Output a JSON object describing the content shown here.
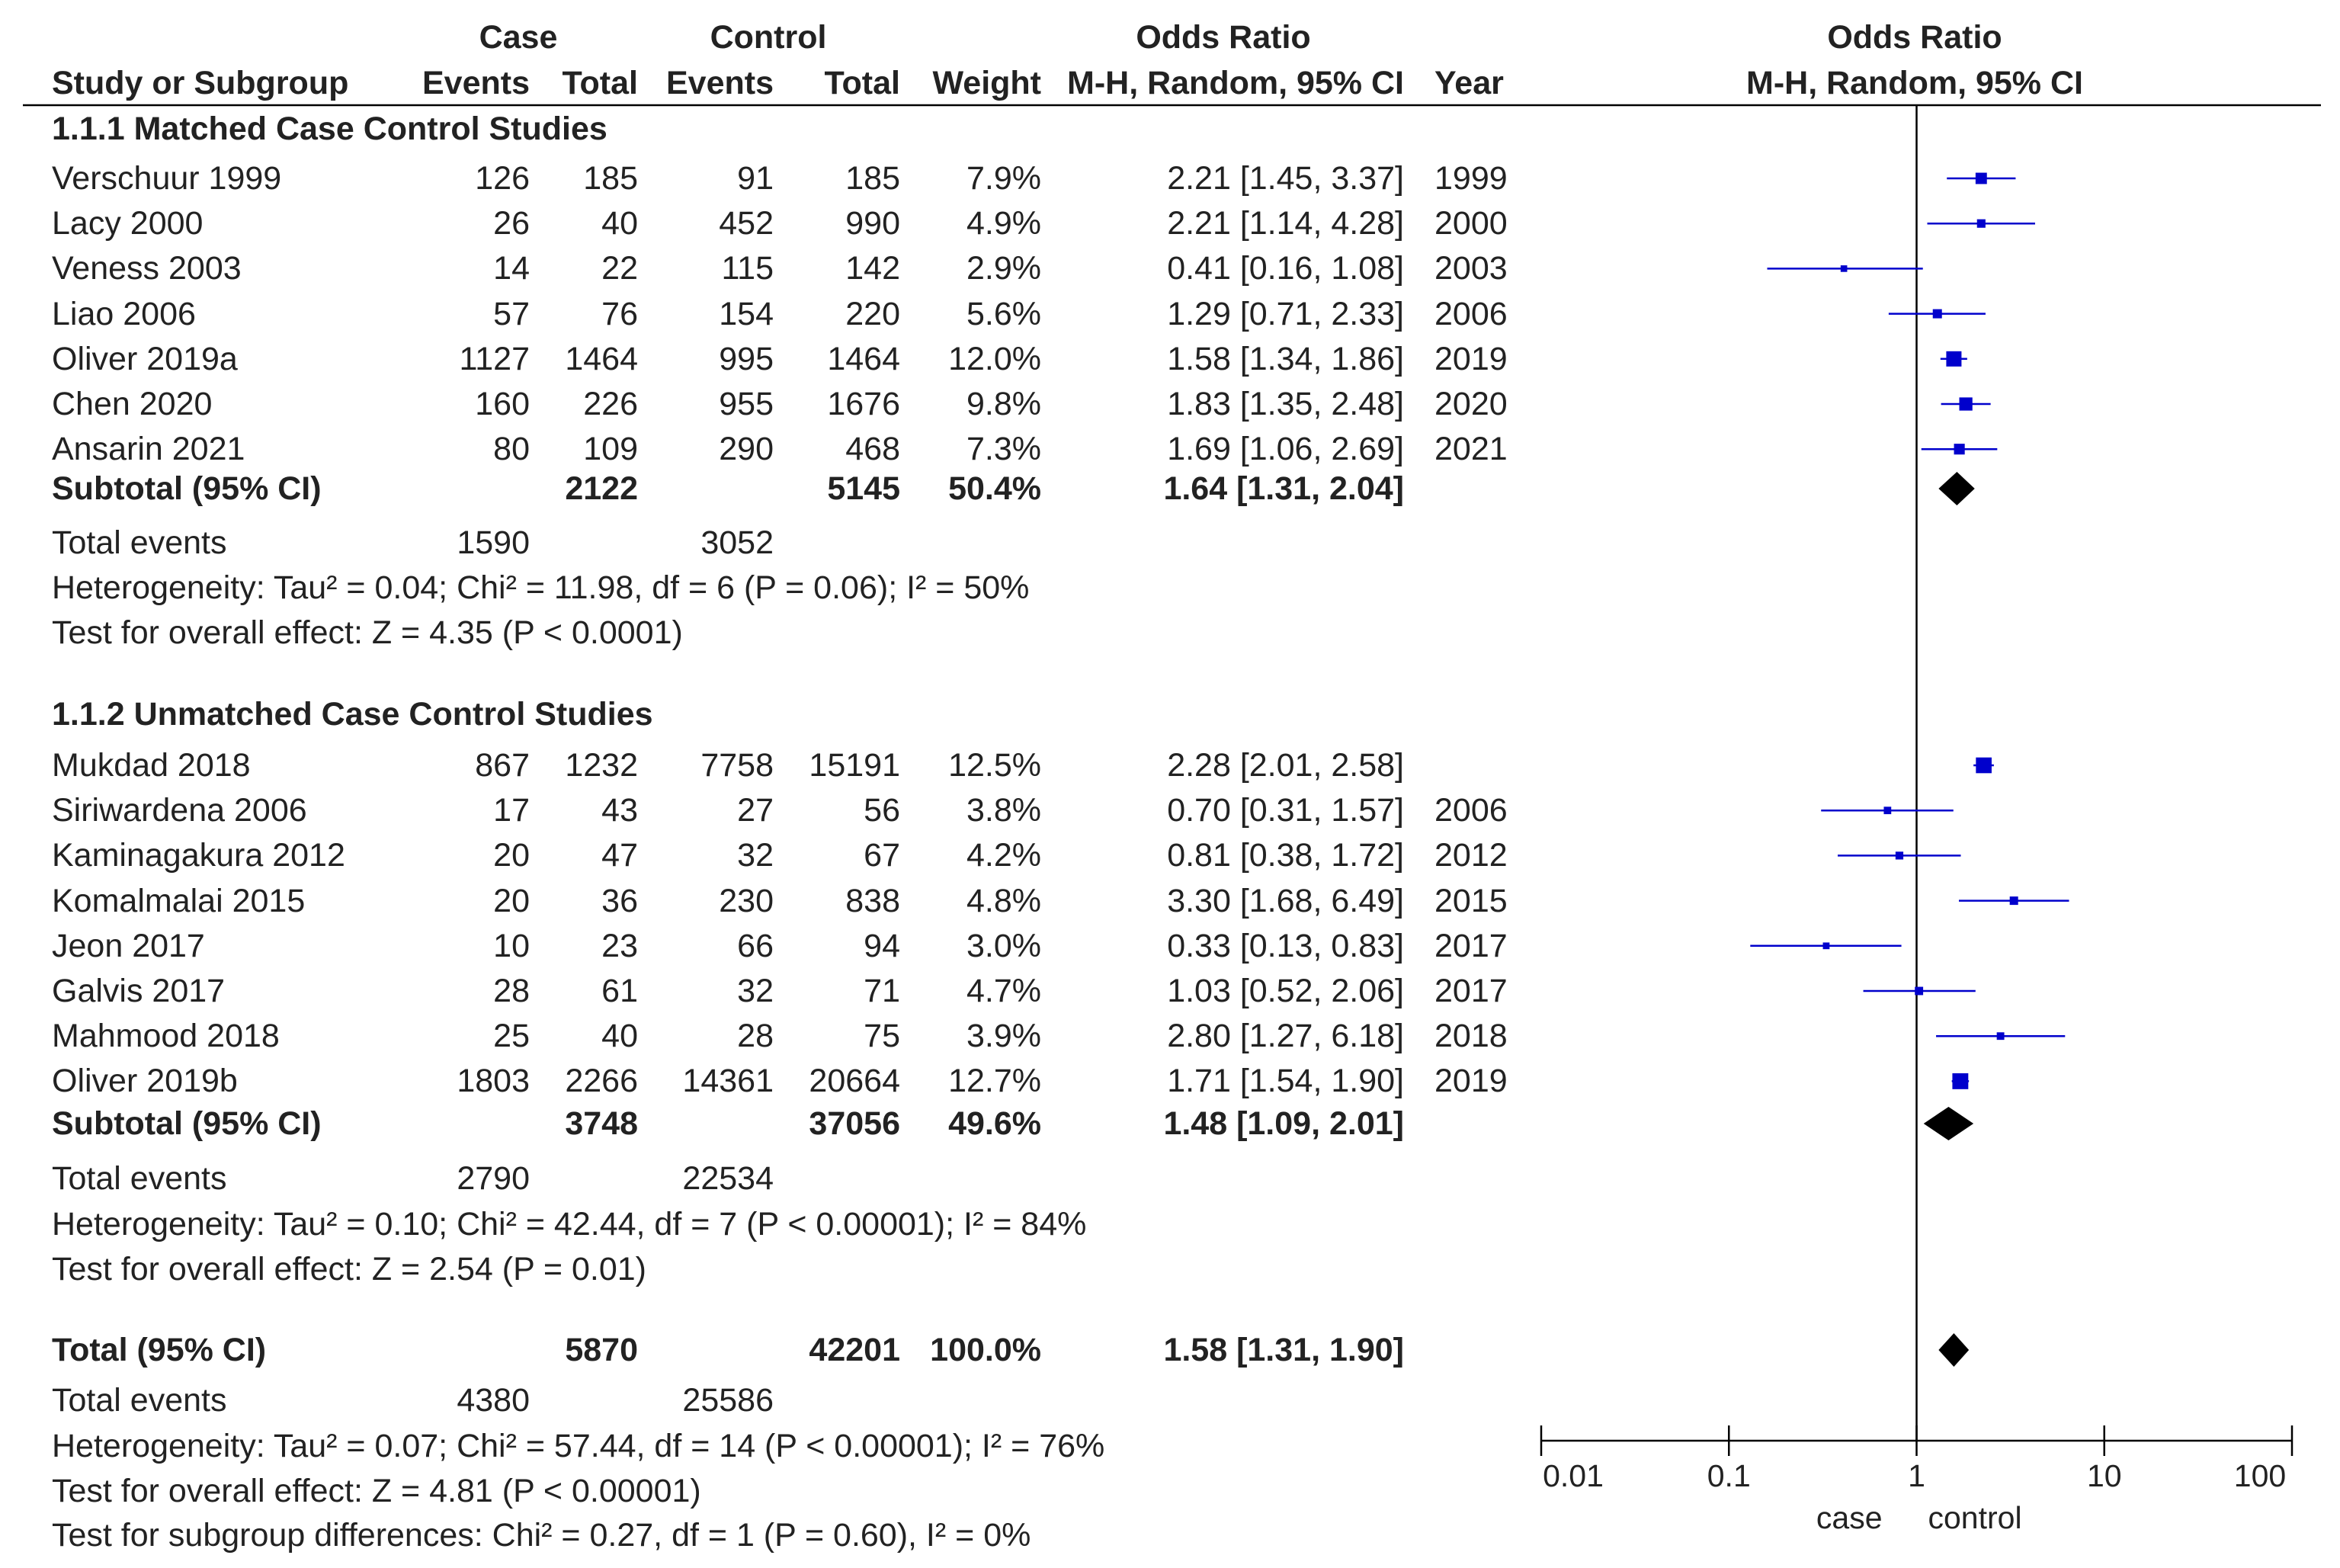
{
  "headers": {
    "case": "Case",
    "control": "Control",
    "or_table": "Odds Ratio",
    "or_plot": "Odds Ratio",
    "study": "Study or Subgroup",
    "case_events": "Events",
    "case_total": "Total",
    "ctrl_events": "Events",
    "ctrl_total": "Total",
    "weight": "Weight",
    "or_method": "M-H, Random, 95% CI",
    "year": "Year",
    "plot_method": "M-H, Random, 95% CI"
  },
  "groups": [
    {
      "title": "1.1.1 Matched Case Control Studies",
      "studies": [
        {
          "name": "Verschuur 1999",
          "case_events": "126",
          "case_total": "185",
          "ctrl_events": "91",
          "ctrl_total": "185",
          "weight": "7.9%",
          "ci": "2.21 [1.45, 3.37]",
          "year": "1999"
        },
        {
          "name": "Lacy 2000",
          "case_events": "26",
          "case_total": "40",
          "ctrl_events": "452",
          "ctrl_total": "990",
          "weight": "4.9%",
          "ci": "2.21 [1.14, 4.28]",
          "year": "2000"
        },
        {
          "name": "Veness 2003",
          "case_events": "14",
          "case_total": "22",
          "ctrl_events": "115",
          "ctrl_total": "142",
          "weight": "2.9%",
          "ci": "0.41 [0.16, 1.08]",
          "year": "2003"
        },
        {
          "name": "Liao 2006",
          "case_events": "57",
          "case_total": "76",
          "ctrl_events": "154",
          "ctrl_total": "220",
          "weight": "5.6%",
          "ci": "1.29 [0.71, 2.33]",
          "year": "2006"
        },
        {
          "name": "Oliver 2019a",
          "case_events": "1127",
          "case_total": "1464",
          "ctrl_events": "995",
          "ctrl_total": "1464",
          "weight": "12.0%",
          "ci": "1.58 [1.34, 1.86]",
          "year": "2019"
        },
        {
          "name": "Chen 2020",
          "case_events": "160",
          "case_total": "226",
          "ctrl_events": "955",
          "ctrl_total": "1676",
          "weight": "9.8%",
          "ci": "1.83 [1.35, 2.48]",
          "year": "2020"
        },
        {
          "name": "Ansarin 2021",
          "case_events": "80",
          "case_total": "109",
          "ctrl_events": "290",
          "ctrl_total": "468",
          "weight": "7.3%",
          "ci": "1.69 [1.06, 2.69]",
          "year": "2021"
        }
      ],
      "subtotal": {
        "label": "Subtotal (95% CI)",
        "case_total": "2122",
        "ctrl_total": "5145",
        "weight": "50.4%",
        "ci": "1.64 [1.31, 2.04]"
      },
      "total_events": {
        "label": "Total events",
        "case": "1590",
        "ctrl": "3052"
      },
      "heterogeneity": "Heterogeneity: Tau² = 0.04; Chi² = 11.98, df = 6 (P = 0.06); I² = 50%",
      "overall": "Test for overall effect: Z = 4.35 (P < 0.0001)"
    },
    {
      "title": "1.1.2 Unmatched Case Control Studies",
      "studies": [
        {
          "name": "Mukdad 2018",
          "case_events": "867",
          "case_total": "1232",
          "ctrl_events": "7758",
          "ctrl_total": "15191",
          "weight": "12.5%",
          "ci": "2.28 [2.01, 2.58]",
          "year": ""
        },
        {
          "name": "Siriwardena 2006",
          "case_events": "17",
          "case_total": "43",
          "ctrl_events": "27",
          "ctrl_total": "56",
          "weight": "3.8%",
          "ci": "0.70 [0.31, 1.57]",
          "year": "2006"
        },
        {
          "name": "Kaminagakura 2012",
          "case_events": "20",
          "case_total": "47",
          "ctrl_events": "32",
          "ctrl_total": "67",
          "weight": "4.2%",
          "ci": "0.81 [0.38, 1.72]",
          "year": "2012"
        },
        {
          "name": "Komalmalai 2015",
          "case_events": "20",
          "case_total": "36",
          "ctrl_events": "230",
          "ctrl_total": "838",
          "weight": "4.8%",
          "ci": "3.30 [1.68, 6.49]",
          "year": "2015"
        },
        {
          "name": "Jeon 2017",
          "case_events": "10",
          "case_total": "23",
          "ctrl_events": "66",
          "ctrl_total": "94",
          "weight": "3.0%",
          "ci": "0.33 [0.13, 0.83]",
          "year": "2017"
        },
        {
          "name": "Galvis 2017",
          "case_events": "28",
          "case_total": "61",
          "ctrl_events": "32",
          "ctrl_total": "71",
          "weight": "4.7%",
          "ci": "1.03 [0.52, 2.06]",
          "year": "2017"
        },
        {
          "name": "Mahmood 2018",
          "case_events": "25",
          "case_total": "40",
          "ctrl_events": "28",
          "ctrl_total": "75",
          "weight": "3.9%",
          "ci": "2.80 [1.27, 6.18]",
          "year": "2018"
        },
        {
          "name": "Oliver 2019b",
          "case_events": "1803",
          "case_total": "2266",
          "ctrl_events": "14361",
          "ctrl_total": "20664",
          "weight": "12.7%",
          "ci": "1.71 [1.54, 1.90]",
          "year": "2019"
        }
      ],
      "subtotal": {
        "label": "Subtotal (95% CI)",
        "case_total": "3748",
        "ctrl_total": "37056",
        "weight": "49.6%",
        "ci": "1.48 [1.09, 2.01]"
      },
      "total_events": {
        "label": "Total events",
        "case": "2790",
        "ctrl": "22534"
      },
      "heterogeneity": "Heterogeneity: Tau² = 0.10; Chi² = 42.44, df = 7 (P < 0.00001); I² = 84%",
      "overall": "Test for overall effect: Z = 2.54 (P = 0.01)"
    }
  ],
  "total": {
    "label": "Total (95% CI)",
    "case_total": "5870",
    "ctrl_total": "42201",
    "weight": "100.0%",
    "ci": "1.58 [1.31, 1.90]",
    "events_label": "Total events",
    "events_case": "4380",
    "events_ctrl": "25586",
    "heterogeneity": "Heterogeneity: Tau² = 0.07; Chi² = 57.44, df = 14 (P < 0.00001); I² = 76%",
    "overall": "Test for overall effect: Z = 4.81 (P < 0.00001)",
    "subgroup": "Test for subgroup differences: Chi² = 0.27, df = 1 (P = 0.60), I² = 0%"
  },
  "chart_data": {
    "type": "scatter",
    "subtype": "forest",
    "x_scale": "log",
    "xlim": [
      0.01,
      100
    ],
    "x_ticks": [
      0.01,
      0.1,
      1,
      10,
      100
    ],
    "x_tick_labels": [
      "0.01",
      "0.1",
      "1",
      "10",
      "100"
    ],
    "favours_left": "case",
    "favours_right": "control",
    "reference_line": 1,
    "marker_color": "#0000cc",
    "diamond_color": "#000000",
    "studies": [
      {
        "or": 2.21,
        "lo": 1.45,
        "hi": 3.37,
        "weight": 7.9
      },
      {
        "or": 2.21,
        "lo": 1.14,
        "hi": 4.28,
        "weight": 4.9
      },
      {
        "or": 0.41,
        "lo": 0.16,
        "hi": 1.08,
        "weight": 2.9
      },
      {
        "or": 1.29,
        "lo": 0.71,
        "hi": 2.33,
        "weight": 5.6
      },
      {
        "or": 1.58,
        "lo": 1.34,
        "hi": 1.86,
        "weight": 12.0
      },
      {
        "or": 1.83,
        "lo": 1.35,
        "hi": 2.48,
        "weight": 9.8
      },
      {
        "or": 1.69,
        "lo": 1.06,
        "hi": 2.69,
        "weight": 7.3
      },
      {
        "or": 2.28,
        "lo": 2.01,
        "hi": 2.58,
        "weight": 12.5
      },
      {
        "or": 0.7,
        "lo": 0.31,
        "hi": 1.57,
        "weight": 3.8
      },
      {
        "or": 0.81,
        "lo": 0.38,
        "hi": 1.72,
        "weight": 4.2
      },
      {
        "or": 3.3,
        "lo": 1.68,
        "hi": 6.49,
        "weight": 4.8
      },
      {
        "or": 0.33,
        "lo": 0.13,
        "hi": 0.83,
        "weight": 3.0
      },
      {
        "or": 1.03,
        "lo": 0.52,
        "hi": 2.06,
        "weight": 4.7
      },
      {
        "or": 2.8,
        "lo": 1.27,
        "hi": 6.18,
        "weight": 3.9
      },
      {
        "or": 1.71,
        "lo": 1.54,
        "hi": 1.9,
        "weight": 12.7
      }
    ],
    "pooled": [
      {
        "or": 1.64,
        "lo": 1.31,
        "hi": 2.04
      },
      {
        "or": 1.48,
        "lo": 1.09,
        "hi": 2.01
      },
      {
        "or": 1.58,
        "lo": 1.31,
        "hi": 1.9
      }
    ]
  }
}
